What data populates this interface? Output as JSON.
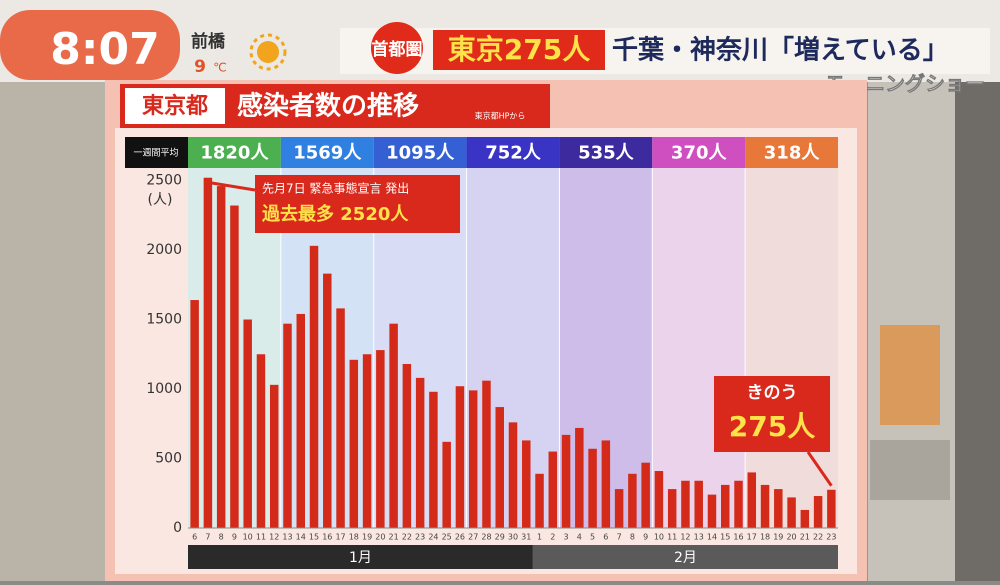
{
  "header": {
    "time": "8:07",
    "city": "前橋",
    "temp": "9",
    "temp_unit": "℃",
    "region": "首都圏",
    "headline": "東京275人",
    "headline_rest": "千葉・神奈川「増えている」",
    "program": "モーニングショー"
  },
  "chart_data": {
    "type": "bar",
    "title_prefix": "東京都",
    "title": "感染者数の推移",
    "source": "東京都HPから",
    "weekly_label": "一週間平均",
    "weeks": [
      {
        "label": "1820人",
        "color": "#4caf50",
        "band_color": "#d9ece9"
      },
      {
        "label": "1569人",
        "color": "#2f80e0",
        "band_color": "#d3e2f4"
      },
      {
        "label": "1095人",
        "color": "#3560d4",
        "band_color": "#d8dcf4"
      },
      {
        "label": "752人",
        "color": "#3a34c4",
        "band_color": "#d6d2f1"
      },
      {
        "label": "535人",
        "color": "#3d2a9e",
        "band_color": "#cdbde8"
      },
      {
        "label": "370人",
        "color": "#cf4fc0",
        "band_color": "#ecd3ec"
      },
      {
        "label": "318人",
        "color": "#e8773a",
        "band_color": "#f1dcdc"
      }
    ],
    "categories": [
      "6",
      "7",
      "8",
      "9",
      "10",
      "11",
      "12",
      "13",
      "14",
      "15",
      "16",
      "17",
      "18",
      "19",
      "20",
      "21",
      "22",
      "23",
      "24",
      "25",
      "26",
      "27",
      "28",
      "29",
      "30",
      "31",
      "1",
      "2",
      "3",
      "4",
      "5",
      "6",
      "7",
      "8",
      "9",
      "10",
      "11",
      "12",
      "13",
      "14",
      "15",
      "16",
      "17",
      "18",
      "19",
      "20",
      "21",
      "22",
      "23"
    ],
    "values": [
      1640,
      2520,
      2460,
      2320,
      1500,
      1250,
      1030,
      1470,
      1540,
      2030,
      1830,
      1580,
      1210,
      1250,
      1280,
      1470,
      1180,
      1080,
      980,
      620,
      1020,
      990,
      1060,
      870,
      760,
      630,
      390,
      550,
      670,
      720,
      570,
      630,
      280,
      390,
      470,
      410,
      280,
      340,
      340,
      240,
      310,
      340,
      400,
      310,
      280,
      220,
      130,
      230,
      275
    ],
    "color": "#d42a1a",
    "months": [
      "1月",
      "2月"
    ],
    "ylim": [
      0,
      2590
    ],
    "yticks": [
      0,
      500,
      1000,
      1500,
      2000,
      2500
    ],
    "y_label": "(人)",
    "grid": false,
    "annotation": [
      "先月7日 緊急事態宣言 発出",
      "過去最多 2520人"
    ],
    "callout": [
      "きのう",
      "275人"
    ]
  }
}
